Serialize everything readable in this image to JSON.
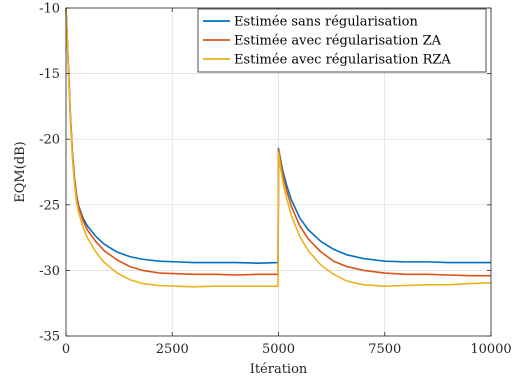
{
  "chart_data": {
    "type": "line",
    "xlabel": "Itération",
    "ylabel": "EQM(dB)",
    "xlim": [
      0,
      10000
    ],
    "ylim": [
      -35,
      -10
    ],
    "xticks": [
      0,
      2500,
      5000,
      7500,
      10000
    ],
    "yticks": [
      -35,
      -30,
      -25,
      -20,
      -15,
      -10
    ],
    "grid": true,
    "legend_position": "top-right",
    "series": [
      {
        "name": "Estimée sans régularisation",
        "color": "#0072BD",
        "x": [
          0,
          50,
          100,
          150,
          200,
          250,
          300,
          400,
          500,
          700,
          900,
          1200,
          1500,
          1800,
          2200,
          2600,
          3000,
          3500,
          4000,
          4500,
          4990,
          5000,
          5010,
          5050,
          5100,
          5200,
          5300,
          5500,
          5700,
          6000,
          6300,
          6600,
          7000,
          7500,
          8000,
          8500,
          9000,
          9500,
          10000
        ],
        "y": [
          -10,
          -14,
          -18,
          -21,
          -23,
          -24.3,
          -25.1,
          -26.0,
          -26.6,
          -27.4,
          -28.0,
          -28.6,
          -28.95,
          -29.15,
          -29.3,
          -29.35,
          -29.4,
          -29.4,
          -29.4,
          -29.45,
          -29.4,
          -20.7,
          -20.9,
          -21.6,
          -22.4,
          -23.6,
          -24.6,
          -26.0,
          -26.9,
          -27.8,
          -28.4,
          -28.8,
          -29.1,
          -29.3,
          -29.35,
          -29.35,
          -29.4,
          -29.4,
          -29.4
        ]
      },
      {
        "name": "Estimée avec régularisation ZA",
        "color": "#D95319",
        "x": [
          0,
          50,
          100,
          150,
          200,
          250,
          300,
          400,
          500,
          700,
          900,
          1200,
          1500,
          1800,
          2200,
          2600,
          3000,
          3500,
          4000,
          4500,
          4990,
          5000,
          5010,
          5050,
          5100,
          5200,
          5300,
          5500,
          5700,
          6000,
          6300,
          6600,
          7000,
          7500,
          8000,
          8500,
          9000,
          9500,
          10000
        ],
        "y": [
          -10,
          -14,
          -18,
          -21,
          -23,
          -24.4,
          -25.2,
          -26.2,
          -26.9,
          -27.8,
          -28.5,
          -29.2,
          -29.7,
          -30.0,
          -30.2,
          -30.25,
          -30.3,
          -30.3,
          -30.35,
          -30.3,
          -30.3,
          -20.8,
          -21.0,
          -21.8,
          -22.7,
          -24.0,
          -25.1,
          -26.6,
          -27.6,
          -28.6,
          -29.3,
          -29.7,
          -30.0,
          -30.2,
          -30.3,
          -30.3,
          -30.35,
          -30.4,
          -30.4
        ]
      },
      {
        "name": "Estimée avec régularisation RZA",
        "color": "#EDB120",
        "x": [
          0,
          50,
          100,
          150,
          200,
          250,
          300,
          400,
          500,
          700,
          900,
          1200,
          1500,
          1800,
          2200,
          2600,
          3000,
          3500,
          4000,
          4500,
          4990,
          5000,
          5010,
          5050,
          5100,
          5200,
          5300,
          5500,
          5700,
          6000,
          6300,
          6600,
          7000,
          7500,
          8000,
          8500,
          9000,
          9500,
          10000
        ],
        "y": [
          -10,
          -14.2,
          -18.3,
          -21.4,
          -23.4,
          -24.8,
          -25.6,
          -26.7,
          -27.5,
          -28.6,
          -29.4,
          -30.2,
          -30.7,
          -31.0,
          -31.15,
          -31.2,
          -31.25,
          -31.2,
          -31.2,
          -31.2,
          -31.2,
          -21.0,
          -21.3,
          -22.2,
          -23.2,
          -24.6,
          -25.8,
          -27.4,
          -28.5,
          -29.6,
          -30.3,
          -30.8,
          -31.1,
          -31.2,
          -31.15,
          -31.1,
          -31.1,
          -31.0,
          -30.95
        ]
      }
    ]
  }
}
